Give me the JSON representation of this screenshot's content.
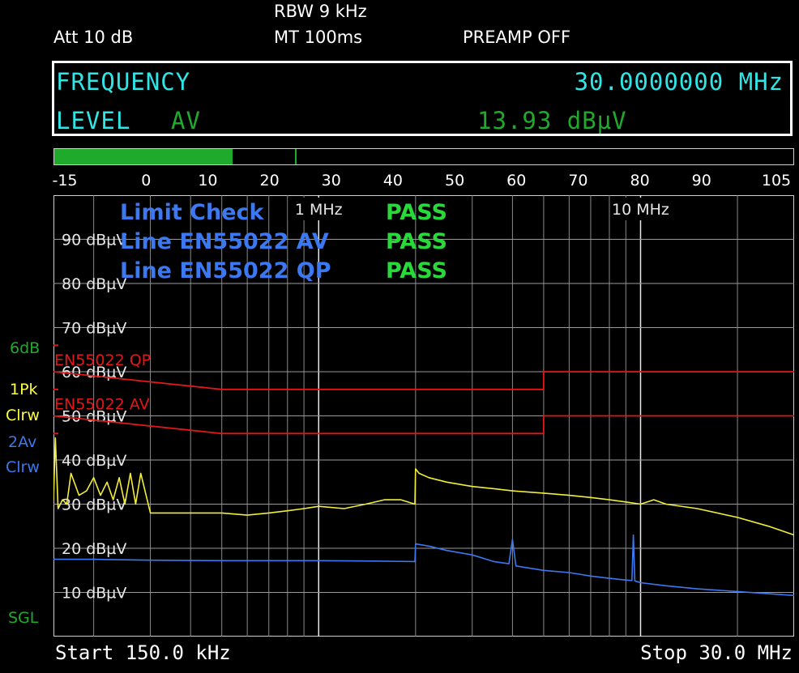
{
  "header": {
    "att": "Att   10 dB",
    "rbw": "RBW  9 kHz",
    "mt": "MT    100ms",
    "preamp": "PREAMP OFF"
  },
  "readout": {
    "freq_label": "FREQUENCY",
    "freq_value": "30.0000000 MHz",
    "level_label": "LEVEL",
    "level_detector": "AV",
    "level_value": "13.93 dBµV"
  },
  "bar_scale": {
    "labels": [
      "-15",
      "0",
      "10",
      "20",
      "30",
      "40",
      "50",
      "60",
      "70",
      "80",
      "90",
      "105"
    ],
    "min": -15,
    "max": 105,
    "value": 13.93,
    "marker": 24
  },
  "side_labels": {
    "range": "6dB",
    "trace1_det": "1Pk",
    "trace1_mode": "Clrw",
    "trace2_det": "2Av",
    "trace2_mode": "Clrw",
    "sweep": "SGL"
  },
  "footer": {
    "start": "Start 150.0 kHz",
    "stop": "Stop 30.0 MHz"
  },
  "colors": {
    "background": "#000000",
    "cyan": "#2ee6e6",
    "green": "#1faa2c",
    "pass_green": "#29d83a",
    "blue_text": "#3c78f0",
    "limit_red": "#e01818",
    "trace_yellow": "#f2ee3a",
    "trace_blue": "#3c78f0",
    "yellow_label": "#ffff40"
  },
  "chart_data": {
    "type": "line",
    "title": "",
    "xlabel": "",
    "ylabel": "",
    "x_scale": "log",
    "xlim_mhz": [
      0.15,
      30
    ],
    "ylim_dbuv": [
      0,
      100
    ],
    "grid": true,
    "y_tick_labels": [
      "90 dBµV",
      "80 dBµV",
      "70 dBµV",
      "60 dBµV",
      "50 dBµV",
      "40 dBµV",
      "30 dBµV",
      "20 dBµV",
      "10 dBµV"
    ],
    "y_tick_values": [
      90,
      80,
      70,
      60,
      50,
      40,
      30,
      20,
      10
    ],
    "x_tick_labels": [
      {
        "label": "1 MHz",
        "x": 1
      },
      {
        "label": "10 MHz",
        "x": 10
      }
    ],
    "limit_check": {
      "title": "Limit Check",
      "title_status": "PASS",
      "lines": [
        {
          "label": "Line EN55022 AV",
          "status": "PASS"
        },
        {
          "label": "Line EN55022 QP",
          "status": "PASS"
        }
      ]
    },
    "limit_lines": [
      {
        "name": "EN55022 QP",
        "x": [
          0.15,
          0.5,
          0.5,
          5,
          5,
          30
        ],
        "y": [
          60,
          56,
          56,
          56,
          60,
          60
        ]
      },
      {
        "name": "EN55022 AV",
        "x": [
          0.15,
          0.5,
          0.5,
          5,
          5,
          30
        ],
        "y": [
          50,
          46,
          46,
          46,
          50,
          50
        ]
      }
    ],
    "series": [
      {
        "trace": "1Pk Clrw",
        "x": [
          0.15,
          0.152,
          0.155,
          0.16,
          0.165,
          0.17,
          0.18,
          0.19,
          0.2,
          0.21,
          0.22,
          0.23,
          0.24,
          0.25,
          0.26,
          0.27,
          0.28,
          0.3,
          0.35,
          0.4,
          0.5,
          0.6,
          0.7,
          0.8,
          0.9,
          1.0,
          1.2,
          1.4,
          1.6,
          1.8,
          1.99,
          2.0,
          2.05,
          2.2,
          2.5,
          3.0,
          3.5,
          4.0,
          5.0,
          6.0,
          7.0,
          8.0,
          9.0,
          10.0,
          11.0,
          12.0,
          15.0,
          20.0,
          25.0,
          30.0
        ],
        "y": [
          31,
          45,
          29,
          31,
          30,
          37,
          32,
          33,
          36,
          32,
          35,
          31,
          36,
          30,
          37,
          30,
          37,
          28,
          28,
          28,
          28,
          27.5,
          28,
          28.5,
          29,
          29.5,
          29,
          30,
          31,
          31,
          30,
          38,
          37,
          36,
          35,
          34,
          33.5,
          33,
          32.5,
          32,
          31.5,
          31,
          30.5,
          30,
          31,
          30,
          29,
          27,
          25,
          23
        ]
      },
      {
        "trace": "2Av Clrw",
        "x": [
          0.15,
          0.2,
          0.3,
          0.5,
          0.7,
          1.0,
          1.5,
          1.99,
          2.0,
          2.2,
          2.5,
          3.0,
          3.5,
          3.9,
          4.0,
          4.1,
          5.0,
          6.0,
          7.0,
          8.0,
          9.0,
          9.4,
          9.5,
          9.6,
          10.0,
          12.0,
          15.0,
          20.0,
          25.0,
          30.0
        ],
        "y": [
          17.5,
          17.5,
          17.3,
          17.2,
          17.2,
          17.2,
          17.1,
          17,
          21,
          20.5,
          19.5,
          18.5,
          17,
          16.5,
          22,
          16,
          15,
          14.5,
          13.7,
          13.2,
          12.8,
          12.7,
          23,
          12.6,
          12.2,
          11.5,
          10.8,
          10.2,
          9.7,
          9.3
        ]
      }
    ]
  }
}
